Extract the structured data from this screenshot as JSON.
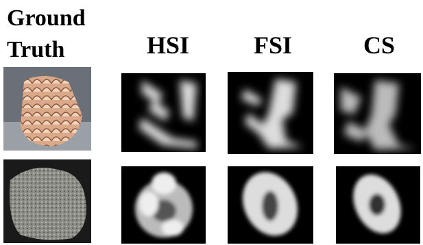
{
  "columns": [
    "Ground Truth",
    "HSI",
    "FSI",
    "CS"
  ]
}
